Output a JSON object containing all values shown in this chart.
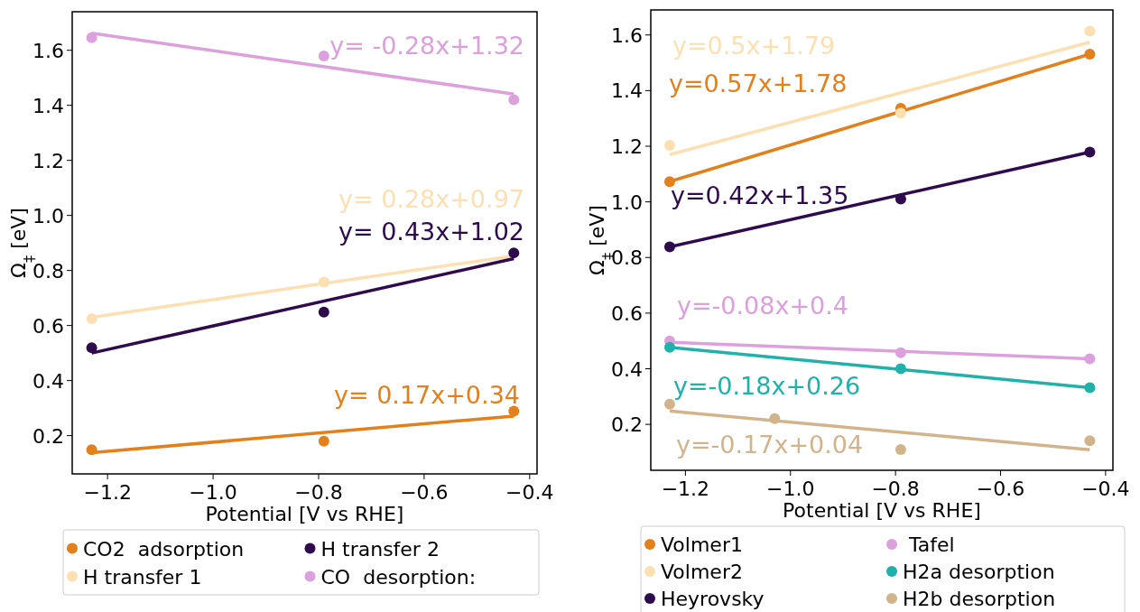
{
  "chart_data": [
    {
      "type": "scatter",
      "xlabel": "Potential [V vs RHE]",
      "ylabel": "Ω$_{‡}$ [eV]",
      "xlim": [
        -1.267,
        -0.386
      ],
      "ylim": [
        0.061,
        1.74
      ],
      "xticks": [
        {
          "value": -1.2,
          "label": "−1.2"
        },
        {
          "value": -1.0,
          "label": "−1.0"
        },
        {
          "value": -0.8,
          "label": "−0.8"
        },
        {
          "value": -0.6,
          "label": "−0.6"
        },
        {
          "value": -0.4,
          "label": "−0.4"
        }
      ],
      "yticks": [
        {
          "value": 0.2,
          "label": "0.2"
        },
        {
          "value": 0.4,
          "label": "0.4"
        },
        {
          "value": 0.6,
          "label": "0.6"
        },
        {
          "value": 0.8,
          "label": "0.8"
        },
        {
          "value": 1.0,
          "label": "1.0"
        },
        {
          "value": 1.2,
          "label": "1.2"
        },
        {
          "value": 1.4,
          "label": "1.4"
        },
        {
          "value": 1.6,
          "label": "1.6"
        }
      ],
      "grid": false,
      "legend": "bottom",
      "marker": "circle",
      "line_style": "solid",
      "series": [
        {
          "name": "CO2  adsorption",
          "color": "#e2801b",
          "x": [
            -1.23,
            -0.79,
            -0.43
          ],
          "values": [
            0.149,
            0.18,
            0.289
          ]
        },
        {
          "name": "H transfer 1",
          "color": "#fde0b2",
          "x": [
            -1.23,
            -0.79
          ],
          "values": [
            0.625,
            0.758
          ]
        },
        {
          "name": "H transfer 2",
          "color": "#2e0b4d",
          "x": [
            -1.23,
            -0.79,
            -0.43
          ],
          "values": [
            0.519,
            0.649,
            0.864
          ]
        },
        {
          "name": "CO  desorption:",
          "color": "#dca0dc",
          "x": [
            -1.23,
            -0.79,
            -0.43
          ],
          "values": [
            1.646,
            1.579,
            1.42
          ]
        },
        {
          "type": "line",
          "marker": "none",
          "color": "#e2801b",
          "x": [
            -1.23,
            -0.43
          ],
          "values": [
            0.138,
            0.271
          ]
        },
        {
          "type": "line",
          "marker": "none",
          "color": "#fde0b2",
          "x": [
            -1.23,
            -0.43
          ],
          "values": [
            0.63,
            0.853
          ]
        },
        {
          "type": "line",
          "marker": "none",
          "color": "#2e0b4d",
          "x": [
            -1.23,
            -0.43
          ],
          "values": [
            0.5,
            0.843
          ]
        },
        {
          "type": "line",
          "marker": "none",
          "color": "#dca0dc",
          "x": [
            -1.23,
            -0.43
          ],
          "values": [
            1.662,
            1.441
          ]
        }
      ],
      "annotations": [
        "y= 0.17x+0.34",
        "y= 0.28x+0.97",
        "y= 0.43x+1.02",
        "y= -0.28x+1.32"
      ]
    },
    {
      "type": "scatter",
      "xlabel": "Potential [V vs RHE]",
      "ylabel": "Ω$_{‡}$ [eV]",
      "xlim": [
        -1.266,
        -0.386
      ],
      "ylim": [
        0.035,
        1.69
      ],
      "xticks": [
        {
          "value": -1.2,
          "label": "−1.2"
        },
        {
          "value": -1.0,
          "label": "−1.0"
        },
        {
          "value": -0.8,
          "label": "−0.8"
        },
        {
          "value": -0.6,
          "label": "−0.6"
        },
        {
          "value": -0.4,
          "label": "−0.4"
        }
      ],
      "yticks": [
        {
          "value": 0.2,
          "label": "0.2"
        },
        {
          "value": 0.4,
          "label": "0.4"
        },
        {
          "value": 0.6,
          "label": "0.6"
        },
        {
          "value": 0.8,
          "label": "0.8"
        },
        {
          "value": 1.0,
          "label": "1.0"
        },
        {
          "value": 1.2,
          "label": "1.2"
        },
        {
          "value": 1.4,
          "label": "1.4"
        },
        {
          "value": 1.6,
          "label": "1.6"
        }
      ],
      "grid": false,
      "legend": "bottom",
      "marker": "circle",
      "line_style": "solid",
      "series": [
        {
          "name": "Volmer1",
          "color": "#e2801b",
          "x": [
            -1.23,
            -0.79,
            -0.43
          ],
          "values": [
            1.073,
            1.336,
            1.531
          ]
        },
        {
          "name": "Volmer2",
          "color": "#fde0b2",
          "x": [
            -1.23,
            -0.79,
            -0.43
          ],
          "values": [
            1.203,
            1.319,
            1.614
          ]
        },
        {
          "name": "Heyrovsky",
          "color": "#2e0b4d",
          "x": [
            -1.23,
            -0.79,
            -0.43
          ],
          "values": [
            0.838,
            1.01,
            1.179
          ]
        },
        {
          "name": " Tafel",
          "color": "#dca0dc",
          "x": [
            -1.23,
            -0.79,
            -0.43
          ],
          "values": [
            0.5,
            0.458,
            0.436
          ]
        },
        {
          "name": "H2a desorption",
          "color": "#20b2aa",
          "x": [
            -1.23,
            -0.79,
            -0.43
          ],
          "values": [
            0.477,
            0.4,
            0.332
          ]
        },
        {
          "name": "H2b desorption",
          "color": "#d2b48c",
          "x": [
            -1.23,
            -1.03,
            -0.79,
            -0.43
          ],
          "values": [
            0.273,
            0.221,
            0.11,
            0.141
          ]
        },
        {
          "type": "line",
          "marker": "none",
          "color": "#e2801b",
          "x": [
            -1.23,
            -0.43
          ],
          "values": [
            1.073,
            1.531
          ]
        },
        {
          "type": "line",
          "marker": "none",
          "color": "#fde0b2",
          "x": [
            -1.23,
            -0.43
          ],
          "values": [
            1.17,
            1.574
          ]
        },
        {
          "type": "line",
          "marker": "none",
          "color": "#2e0b4d",
          "x": [
            -1.23,
            -0.43
          ],
          "values": [
            0.838,
            1.179
          ]
        },
        {
          "type": "line",
          "marker": "none",
          "color": "#dca0dc",
          "x": [
            -1.23,
            -0.43
          ],
          "values": [
            0.495,
            0.436
          ]
        },
        {
          "type": "line",
          "marker": "none",
          "color": "#20b2aa",
          "x": [
            -1.23,
            -0.43
          ],
          "values": [
            0.477,
            0.332
          ]
        },
        {
          "type": "line",
          "marker": "none",
          "color": "#d2b48c",
          "x": [
            -1.23,
            -0.43
          ],
          "values": [
            0.248,
            0.109
          ]
        }
      ],
      "annotations": [
        "y=0.57x+1.78",
        "y=0.5x+1.79",
        "y=0.42x+1.35",
        "y=-0.08x+0.4",
        "y=-0.18x+0.26",
        "y=-0.17x+0.04"
      ]
    }
  ]
}
